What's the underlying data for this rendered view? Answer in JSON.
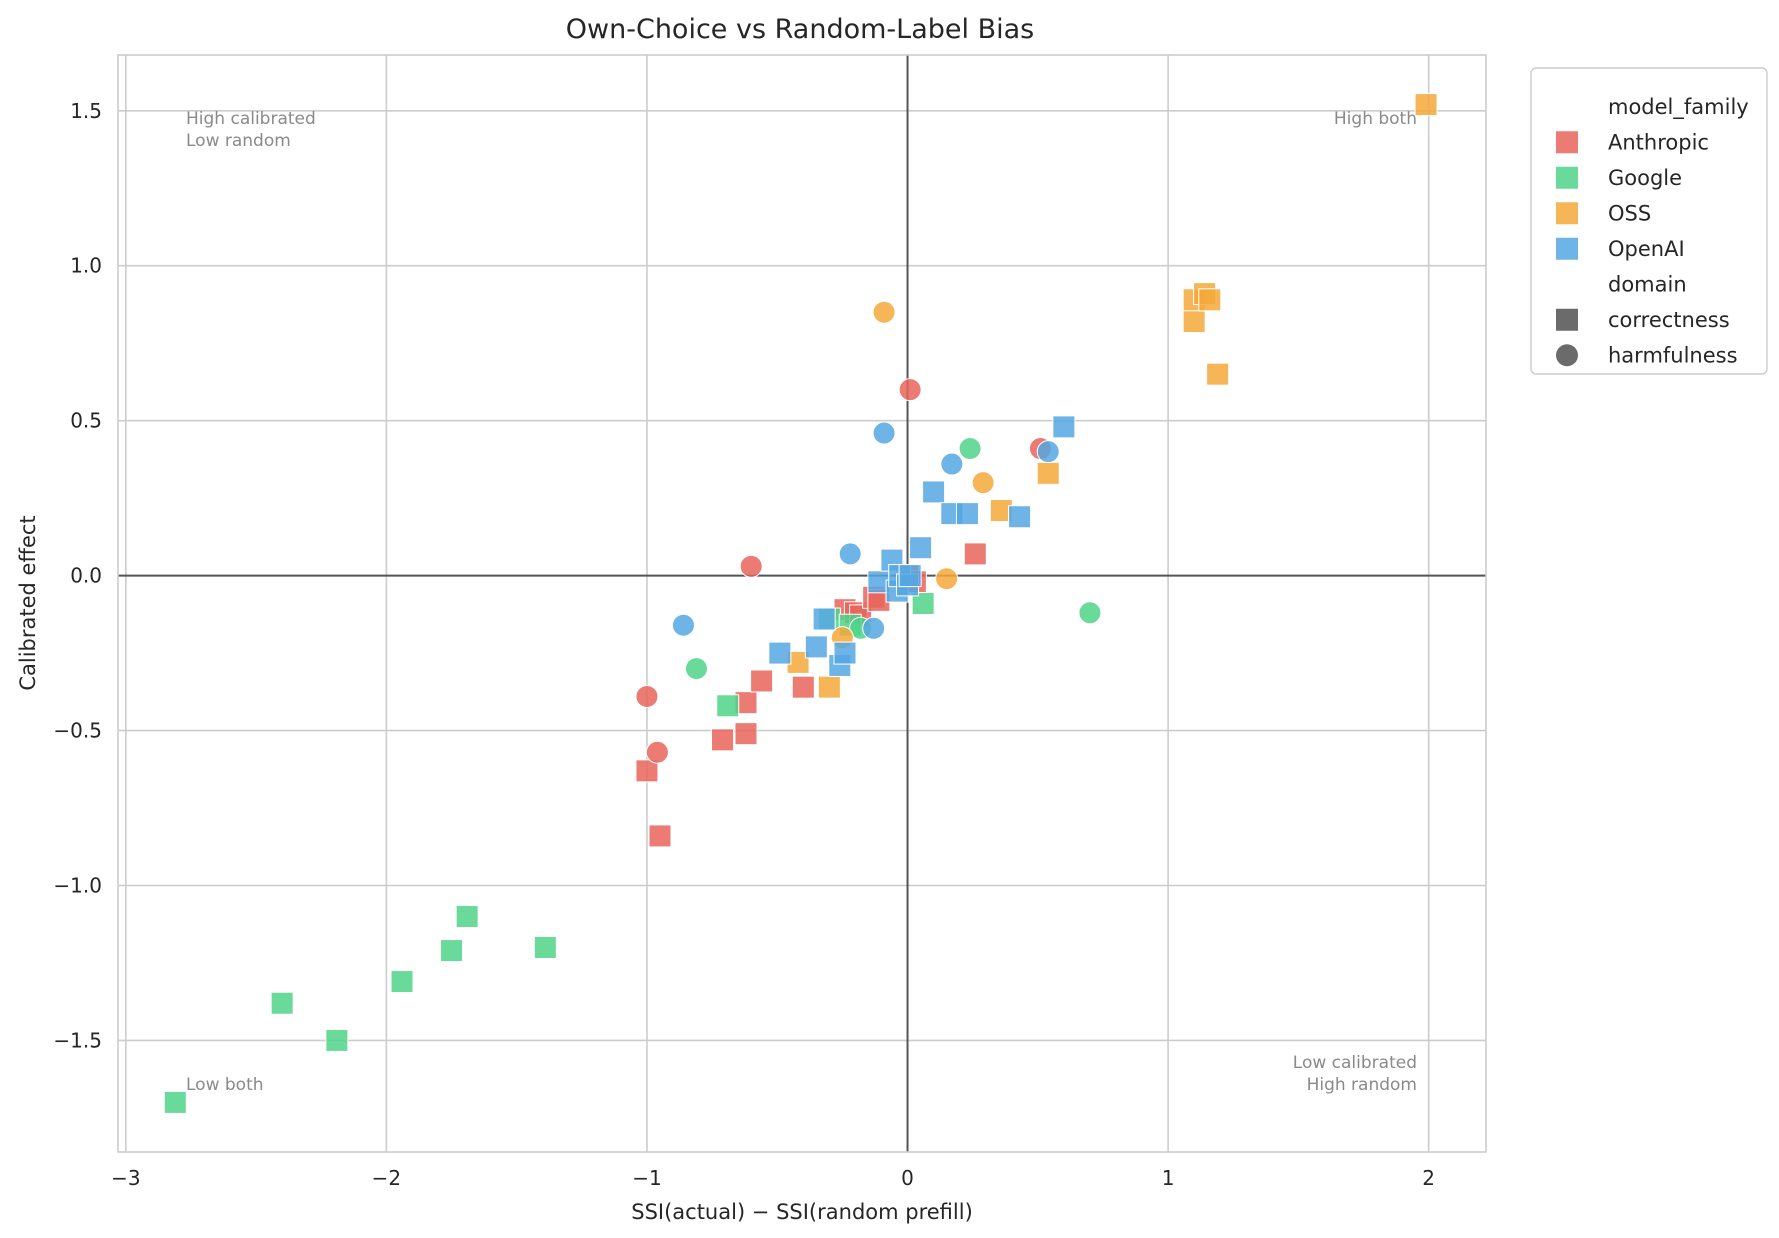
{
  "chart_data": {
    "type": "scatter",
    "title": "Own-Choice vs Random-Label Bias",
    "xlabel": "SSI(actual) − SSI(random prefill)",
    "ylabel": "Calibrated effect",
    "xlim": [
      -3.03,
      2.22
    ],
    "ylim": [
      -1.86,
      1.68
    ],
    "x_ticks": [
      -3,
      -2,
      -1,
      0,
      1,
      2
    ],
    "x_tick_labels": [
      "−3",
      "−2",
      "−1",
      "0",
      "1",
      "2"
    ],
    "y_ticks": [
      1.5,
      1.0,
      0.5,
      0.0,
      -0.5,
      -1.0,
      -1.5
    ],
    "y_tick_labels": [
      "1.5",
      "1.0",
      "0.5",
      "0.0",
      "−0.5",
      "−1.0",
      "−1.5"
    ],
    "grid": true,
    "reference_lines": {
      "x": 0,
      "y": 0
    },
    "quadrant_labels": {
      "top_left": [
        "High calibrated",
        "Low random"
      ],
      "top_right": [
        "High both"
      ],
      "bottom_left": [
        "Low both"
      ],
      "bottom_right": [
        "Low calibrated",
        "High random"
      ]
    },
    "legend": {
      "placement": "outside-top-right",
      "hue_title": "model_family",
      "style_title": "domain",
      "families": [
        {
          "name": "Anthropic",
          "color": "#E8645A"
        },
        {
          "name": "Google",
          "color": "#50D38A"
        },
        {
          "name": "OSS",
          "color": "#F5A83A"
        },
        {
          "name": "OpenAI",
          "color": "#55A7E2"
        }
      ],
      "domains": [
        {
          "name": "correctness",
          "marker": "square"
        },
        {
          "name": "harmfulness",
          "marker": "circle"
        }
      ]
    },
    "series": [
      {
        "family": "Anthropic",
        "correctness": [
          [
            -1.0,
            -0.63
          ],
          [
            -0.95,
            -0.84
          ],
          [
            -0.71,
            -0.53
          ],
          [
            -0.62,
            -0.51
          ],
          [
            -0.62,
            -0.41
          ],
          [
            -0.56,
            -0.34
          ],
          [
            -0.4,
            -0.36
          ],
          [
            -0.24,
            -0.11
          ],
          [
            -0.2,
            -0.12
          ],
          [
            -0.18,
            -0.13
          ],
          [
            -0.13,
            -0.07
          ],
          [
            -0.11,
            -0.08
          ],
          [
            0.0,
            0.0
          ],
          [
            0.03,
            -0.02
          ],
          [
            0.26,
            0.07
          ]
        ],
        "harmfulness": [
          [
            -1.0,
            -0.39
          ],
          [
            -0.96,
            -0.57
          ],
          [
            -0.6,
            0.03
          ],
          [
            0.01,
            0.6
          ],
          [
            0.51,
            0.41
          ]
        ]
      },
      {
        "family": "Google",
        "correctness": [
          [
            -2.81,
            -1.7
          ],
          [
            -2.4,
            -1.38
          ],
          [
            -2.19,
            -1.5
          ],
          [
            -1.94,
            -1.31
          ],
          [
            -1.75,
            -1.21
          ],
          [
            -1.69,
            -1.1
          ],
          [
            -1.39,
            -1.2
          ],
          [
            -0.69,
            -0.42
          ],
          [
            -0.3,
            -0.14
          ],
          [
            -0.22,
            -0.16
          ],
          [
            0.06,
            -0.09
          ]
        ],
        "harmfulness": [
          [
            -0.81,
            -0.3
          ],
          [
            -0.18,
            -0.17
          ],
          [
            0.24,
            0.41
          ],
          [
            0.7,
            -0.12
          ]
        ]
      },
      {
        "family": "OSS",
        "correctness": [
          [
            -0.42,
            -0.28
          ],
          [
            -0.3,
            -0.36
          ],
          [
            0.36,
            0.21
          ],
          [
            0.54,
            0.33
          ],
          [
            1.1,
            0.82
          ],
          [
            1.1,
            0.89
          ],
          [
            1.14,
            0.91
          ],
          [
            1.16,
            0.89
          ],
          [
            1.19,
            0.65
          ],
          [
            1.99,
            1.52
          ]
        ],
        "harmfulness": [
          [
            -0.25,
            -0.2
          ],
          [
            -0.09,
            0.85
          ],
          [
            0.15,
            -0.01
          ],
          [
            0.29,
            0.3
          ]
        ]
      },
      {
        "family": "OpenAI",
        "correctness": [
          [
            -0.49,
            -0.25
          ],
          [
            -0.35,
            -0.23
          ],
          [
            -0.32,
            -0.14
          ],
          [
            -0.26,
            -0.29
          ],
          [
            -0.24,
            -0.25
          ],
          [
            -0.11,
            -0.02
          ],
          [
            -0.06,
            0.05
          ],
          [
            -0.04,
            -0.05
          ],
          [
            -0.03,
            0.0
          ],
          [
            0.0,
            -0.03
          ],
          [
            0.01,
            0.0
          ],
          [
            0.05,
            0.09
          ],
          [
            0.1,
            0.27
          ],
          [
            0.17,
            0.2
          ],
          [
            0.23,
            0.2
          ],
          [
            0.43,
            0.19
          ],
          [
            0.6,
            0.48
          ]
        ],
        "harmfulness": [
          [
            -0.86,
            -0.16
          ],
          [
            -0.22,
            0.07
          ],
          [
            -0.13,
            -0.17
          ],
          [
            -0.09,
            0.46
          ],
          [
            0.17,
            0.36
          ],
          [
            0.54,
            0.4
          ]
        ]
      }
    ]
  }
}
